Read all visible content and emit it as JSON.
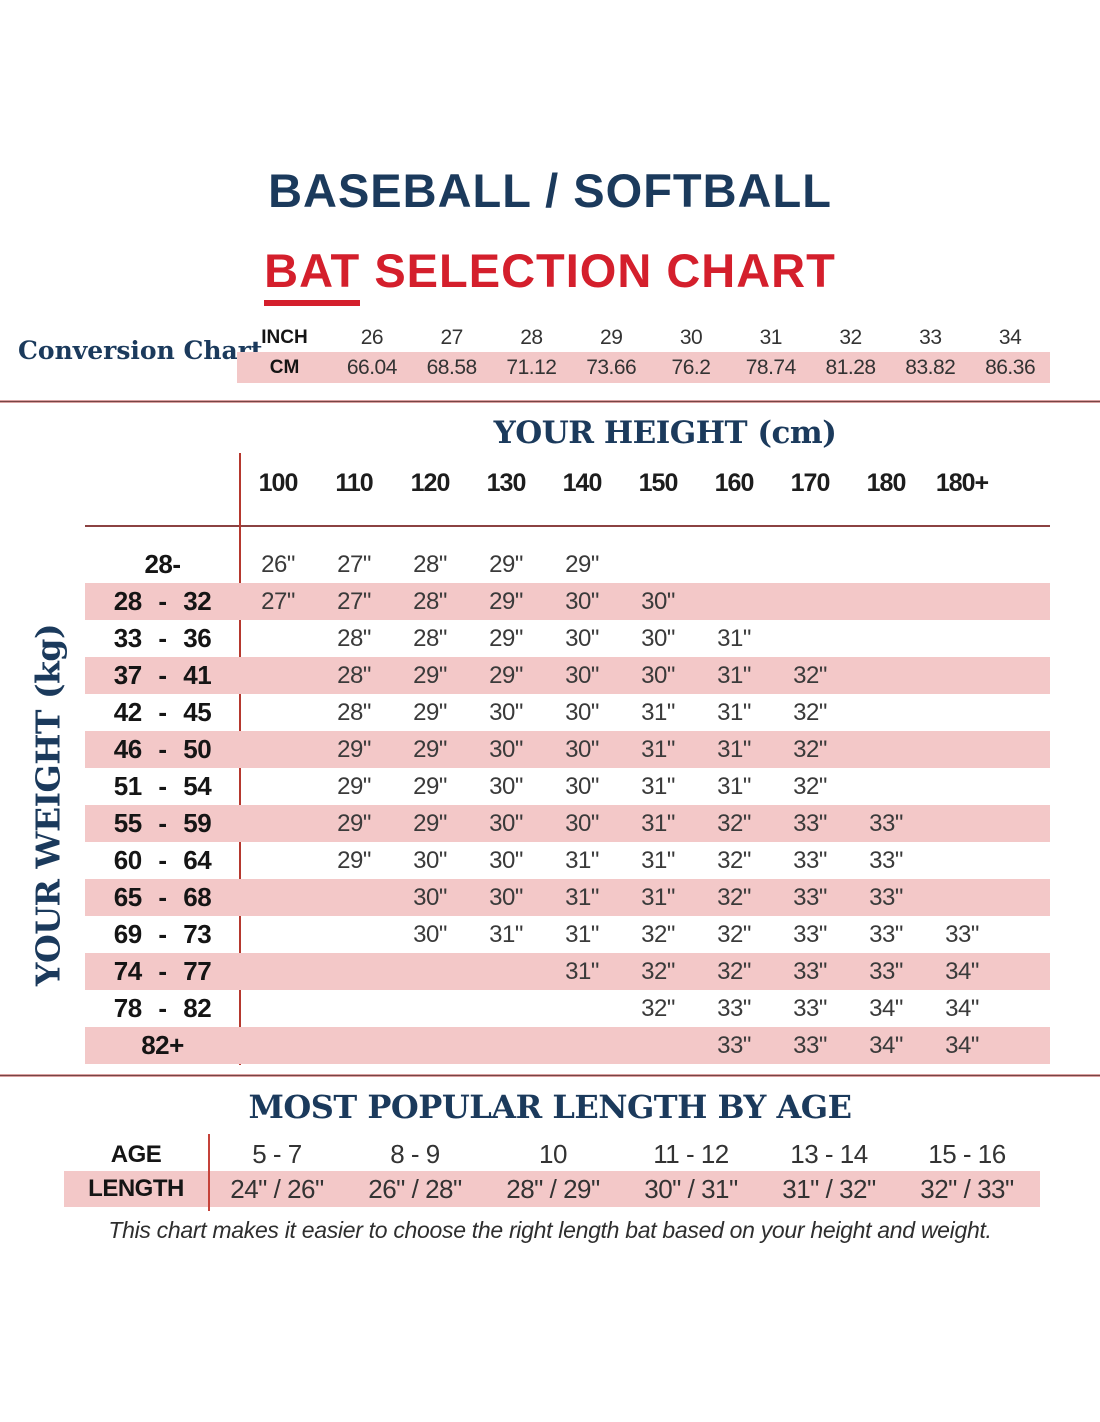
{
  "page": {
    "title_line1": "BASEBALL / SOFTBALL",
    "title_bat": "BAT",
    "title_rest": " SELECTION CHART",
    "footer": "This chart makes it easier to choose the right length bat based on your height and weight."
  },
  "colors": {
    "navy": "#1b3a5c",
    "red": "#d41f2c",
    "pink": "#f3c8c8",
    "rule_maroon": "#774444",
    "line_red": "#b5382e"
  },
  "chart_data": [
    {
      "id": "conversion_chart",
      "type": "table",
      "label": "Conversion Chart",
      "row_labels": [
        "INCH",
        "CM"
      ],
      "inches": [
        "26",
        "27",
        "28",
        "29",
        "30",
        "31",
        "32",
        "33",
        "34"
      ],
      "cm": [
        "66.04",
        "68.58",
        "71.12",
        "73.66",
        "76.2",
        "78.74",
        "81.28",
        "83.82",
        "86.36"
      ]
    },
    {
      "id": "size_matrix",
      "type": "table",
      "title": "YOUR HEIGHT (cm)",
      "ylabel": "YOUR WEIGHT (kg)",
      "columns": [
        "100",
        "110",
        "120",
        "130",
        "140",
        "150",
        "160",
        "170",
        "180",
        "180+"
      ],
      "rows": [
        {
          "weight": "28-",
          "pink": false,
          "values": [
            "26\"",
            "27\"",
            "28\"",
            "29\"",
            "29\"",
            "",
            "",
            "",
            "",
            ""
          ]
        },
        {
          "weight": "28 - 32",
          "pink": true,
          "values": [
            "27\"",
            "27\"",
            "28\"",
            "29\"",
            "30\"",
            "30\"",
            "",
            "",
            "",
            ""
          ]
        },
        {
          "weight": "33 - 36",
          "pink": false,
          "values": [
            "",
            "28\"",
            "28\"",
            "29\"",
            "30\"",
            "30\"",
            "31\"",
            "",
            "",
            ""
          ]
        },
        {
          "weight": "37 - 41",
          "pink": true,
          "values": [
            "",
            "28\"",
            "29\"",
            "29\"",
            "30\"",
            "30\"",
            "31\"",
            "32\"",
            "",
            ""
          ]
        },
        {
          "weight": "42 - 45",
          "pink": false,
          "values": [
            "",
            "28\"",
            "29\"",
            "30\"",
            "30\"",
            "31\"",
            "31\"",
            "32\"",
            "",
            ""
          ]
        },
        {
          "weight": "46 - 50",
          "pink": true,
          "values": [
            "",
            "29\"",
            "29\"",
            "30\"",
            "30\"",
            "31\"",
            "31\"",
            "32\"",
            "",
            ""
          ]
        },
        {
          "weight": "51 - 54",
          "pink": false,
          "values": [
            "",
            "29\"",
            "29\"",
            "30\"",
            "30\"",
            "31\"",
            "31\"",
            "32\"",
            "",
            ""
          ]
        },
        {
          "weight": "55 - 59",
          "pink": true,
          "values": [
            "",
            "29\"",
            "29\"",
            "30\"",
            "30\"",
            "31\"",
            "32\"",
            "33\"",
            "33\"",
            ""
          ]
        },
        {
          "weight": "60 - 64",
          "pink": false,
          "values": [
            "",
            "29\"",
            "30\"",
            "30\"",
            "31\"",
            "31\"",
            "32\"",
            "33\"",
            "33\"",
            ""
          ]
        },
        {
          "weight": "65 - 68",
          "pink": true,
          "values": [
            "",
            "",
            "30\"",
            "30\"",
            "31\"",
            "31\"",
            "32\"",
            "33\"",
            "33\"",
            ""
          ]
        },
        {
          "weight": "69 - 73",
          "pink": false,
          "values": [
            "",
            "",
            "30\"",
            "31\"",
            "31\"",
            "32\"",
            "32\"",
            "33\"",
            "33\"",
            "33\""
          ]
        },
        {
          "weight": "74 - 77",
          "pink": true,
          "values": [
            "",
            "",
            "",
            "",
            "31\"",
            "32\"",
            "32\"",
            "33\"",
            "33\"",
            "34\""
          ]
        },
        {
          "weight": "78 - 82",
          "pink": false,
          "values": [
            "",
            "",
            "",
            "",
            "",
            "32\"",
            "33\"",
            "33\"",
            "34\"",
            "34\""
          ]
        },
        {
          "weight": "82+",
          "pink": true,
          "values": [
            "",
            "",
            "",
            "",
            "",
            "",
            "33\"",
            "33\"",
            "34\"",
            "34\""
          ]
        }
      ]
    },
    {
      "id": "age_chart",
      "type": "table",
      "title": "MOST POPULAR LENGTH BY AGE",
      "row_labels": [
        "AGE",
        "LENGTH"
      ],
      "ages": [
        "5 - 7",
        "8 - 9",
        "10",
        "11 - 12",
        "13 - 14",
        "15 - 16"
      ],
      "lengths": [
        "24\" / 26\"",
        "26\" / 28\"",
        "28\" / 29\"",
        "30\" / 31\"",
        "31\" / 32\"",
        "32\" / 33\""
      ]
    }
  ]
}
